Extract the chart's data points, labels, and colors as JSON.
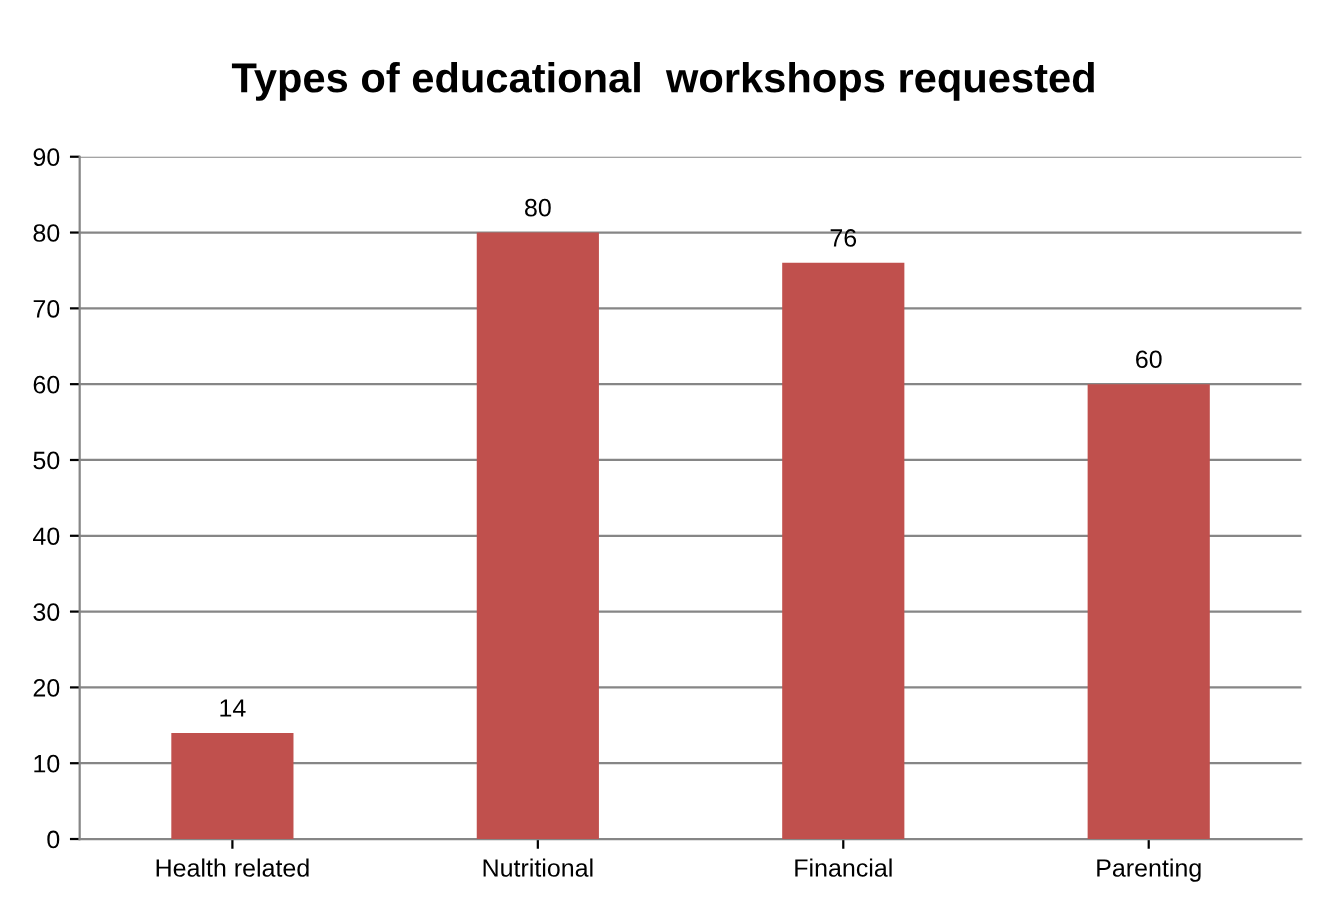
{
  "chart_data": {
    "type": "bar",
    "title": "Types of educational  workshops requested",
    "categories": [
      "Health related",
      "Nutritional",
      "Financial",
      "Parenting"
    ],
    "values": [
      14,
      80,
      76,
      60
    ],
    "color": "#c0504d",
    "ylim": [
      0,
      90
    ],
    "yticks": [
      0,
      10,
      20,
      30,
      40,
      50,
      60,
      70,
      80,
      90
    ],
    "grid": "y",
    "data_labels": true
  }
}
